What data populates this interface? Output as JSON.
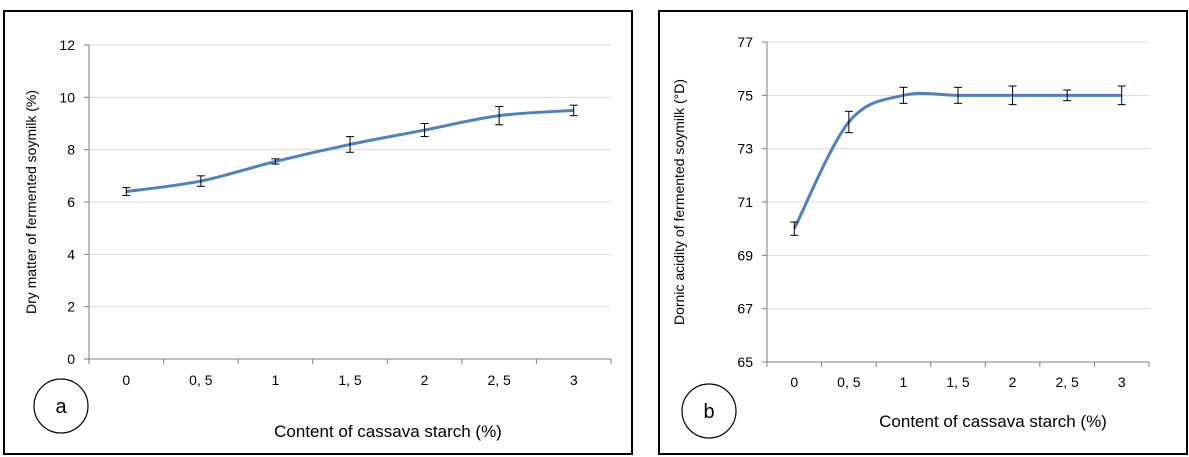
{
  "chart_data": [
    {
      "type": "line",
      "panel_label": "a",
      "categories": [
        "0",
        "0, 5",
        "1",
        "1, 5",
        "2",
        "2, 5",
        "3"
      ],
      "values": [
        6.4,
        6.8,
        7.55,
        8.2,
        8.75,
        9.3,
        9.5
      ],
      "errors": [
        0.15,
        0.2,
        0.1,
        0.3,
        0.25,
        0.35,
        0.2
      ],
      "xlabel": "Content of cassava starch (%)",
      "ylabel": "Dry matter of fermented soymilk (%)",
      "ylim": [
        0,
        12
      ],
      "yticks": [
        0,
        2,
        4,
        6,
        8,
        10,
        12
      ],
      "grid": true,
      "color": "#4f81bd"
    },
    {
      "type": "line",
      "panel_label": "b",
      "categories": [
        "0",
        "0, 5",
        "1",
        "1, 5",
        "2",
        "2, 5",
        "3"
      ],
      "values": [
        70,
        74,
        75,
        75,
        75,
        75,
        75
      ],
      "errors": [
        0.25,
        0.4,
        0.3,
        0.3,
        0.35,
        0.2,
        0.35
      ],
      "xlabel": "Content of cassava starch (%)",
      "ylabel": "Dornic acidity of fermented soymilk (°D)",
      "ylim": [
        65,
        77
      ],
      "yticks": [
        65,
        67,
        69,
        71,
        73,
        75,
        77
      ],
      "grid": true,
      "color": "#4f81bd"
    }
  ]
}
